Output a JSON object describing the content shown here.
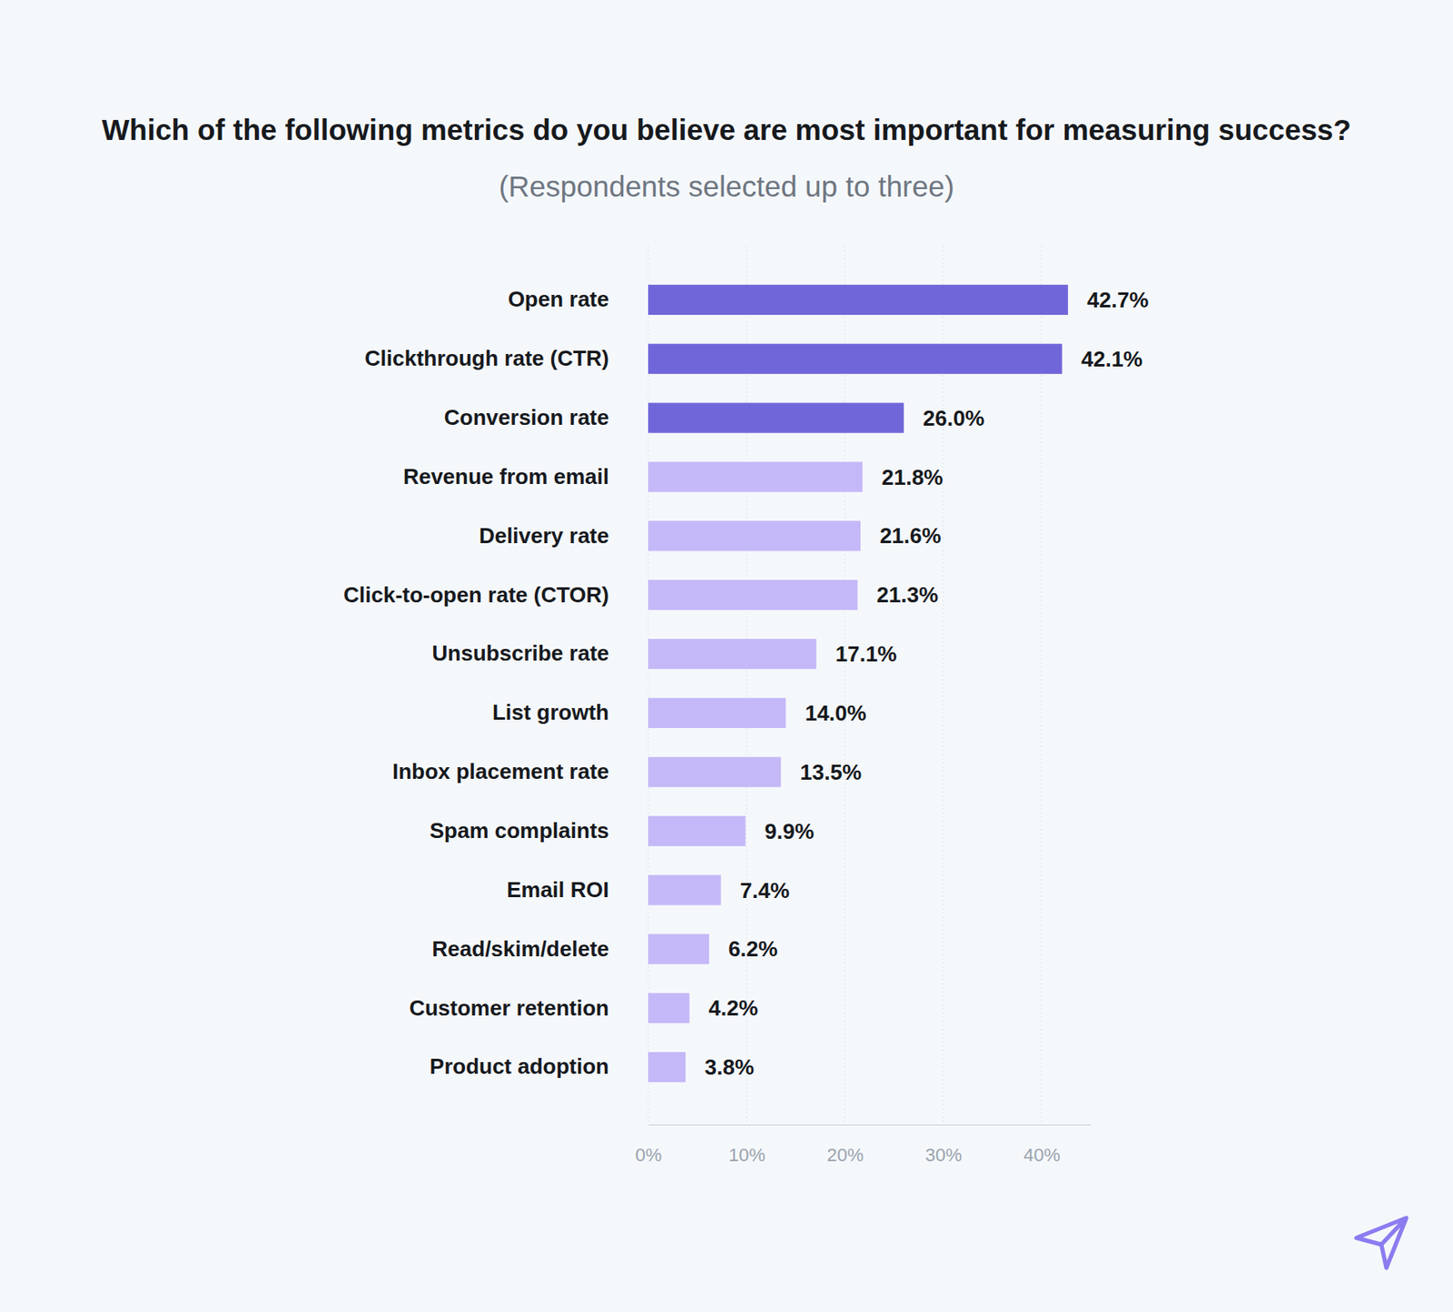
{
  "chart_data": {
    "type": "bar",
    "orientation": "horizontal",
    "title": "Which of the following metrics do you believe are most important for measuring success?",
    "subtitle": "(Respondents selected up to three)",
    "categories": [
      "Open rate",
      "Clickthrough rate (CTR)",
      "Conversion rate",
      "Revenue from email",
      "Delivery rate",
      "Click-to-open rate (CTOR)",
      "Unsubscribe rate",
      "List growth",
      "Inbox placement rate",
      "Spam complaints",
      "Email ROI",
      "Read/skim/delete",
      "Customer retention",
      "Product adoption"
    ],
    "values": [
      42.7,
      42.1,
      26.0,
      21.8,
      21.6,
      21.3,
      17.1,
      14.0,
      13.5,
      9.9,
      7.4,
      6.2,
      4.2,
      3.8
    ],
    "value_labels": [
      "42.7%",
      "42.1%",
      "26.0%",
      "21.8%",
      "21.6%",
      "21.3%",
      "17.1%",
      "14.0%",
      "13.5%",
      "9.9%",
      "7.4%",
      "6.2%",
      "4.2%",
      "3.8%"
    ],
    "colors": [
      "#7166d9",
      "#7166d9",
      "#7166d9",
      "#c5b8f8",
      "#c5b8f8",
      "#c5b8f8",
      "#c5b8f8",
      "#c5b8f8",
      "#c5b8f8",
      "#c5b8f8",
      "#c5b8f8",
      "#c5b8f8",
      "#c5b8f8",
      "#c5b8f8"
    ],
    "xlim": [
      0,
      45
    ],
    "xticks": [
      {
        "value": 0,
        "label": "0%"
      },
      {
        "value": 10,
        "label": "10%"
      },
      {
        "value": 20,
        "label": "20%"
      },
      {
        "value": 30,
        "label": "30%"
      },
      {
        "value": 40,
        "label": "40%"
      }
    ],
    "grid": true,
    "data_labels": true
  }
}
